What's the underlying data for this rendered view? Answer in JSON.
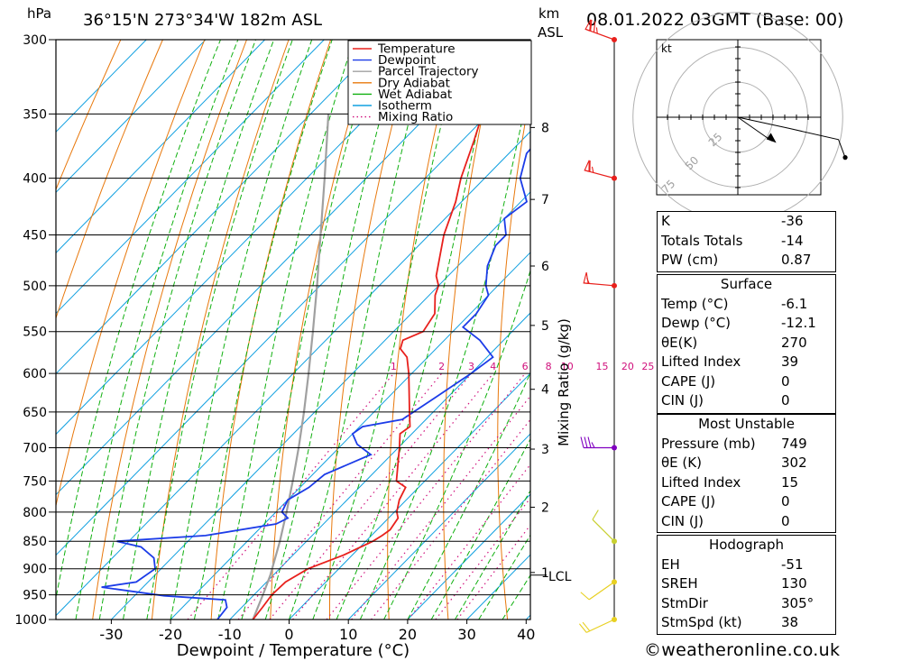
{
  "header": {
    "hpa_unit": "hPa",
    "location": "36°15'N  273°34'W  182m  ASL",
    "km_label": "km",
    "asl_label": "ASL",
    "datetime": "08.01.2022  03GMT  (Base: 00)"
  },
  "chart_data": {
    "type": "line",
    "subtype": "skew-T log-p",
    "xlabel": "Dewpoint / Temperature (°C)",
    "ylabel": "hPa",
    "x_ticks": [
      -30,
      -20,
      -10,
      0,
      10,
      20,
      30,
      40
    ],
    "xlim": [
      -40,
      40
    ],
    "ylim": [
      1000,
      300
    ],
    "pressure_ticks": [
      300,
      350,
      400,
      450,
      500,
      550,
      600,
      650,
      700,
      750,
      800,
      850,
      900,
      950,
      1000
    ],
    "km_ticks": [
      {
        "label": "8",
        "p": 360
      },
      {
        "label": "7",
        "p": 418
      },
      {
        "label": "6",
        "p": 480
      },
      {
        "label": "5",
        "p": 543
      },
      {
        "label": "4",
        "p": 620
      },
      {
        "label": "3",
        "p": 702
      },
      {
        "label": "2",
        "p": 792
      },
      {
        "label": "1",
        "p": 907
      }
    ],
    "lcl_label": "LCL",
    "lcl_pressure": 912,
    "mixing_ratio_label": "Mixing Ratio (g/kg)",
    "mixing_ratios": [
      "1",
      "2",
      "3",
      "4",
      "6",
      "8",
      "10",
      "15",
      "20",
      "25"
    ],
    "legend": {
      "position": "top-right",
      "entries": [
        {
          "name": "Temperature",
          "color": "#e8201c",
          "style": "solid"
        },
        {
          "name": "Dewpoint",
          "color": "#1c3ce8",
          "style": "solid"
        },
        {
          "name": "Parcel Trajectory",
          "color": "#a0a0a0",
          "style": "solid"
        },
        {
          "name": "Dry Adiabat",
          "color": "#e8780c",
          "style": "solid"
        },
        {
          "name": "Wet Adiabat",
          "color": "#10b010",
          "style": "solid"
        },
        {
          "name": "Isotherm",
          "color": "#10a0e0",
          "style": "solid"
        },
        {
          "name": "Mixing Ratio",
          "color": "#d0107c",
          "style": "dotted"
        }
      ]
    },
    "series": [
      {
        "name": "Temperature",
        "color": "#e8201c",
        "points": [
          [
            1000,
            -6.1
          ],
          [
            975,
            -6.5
          ],
          [
            950,
            -7
          ],
          [
            925,
            -6.8
          ],
          [
            900,
            -5.2
          ],
          [
            875,
            -1.5
          ],
          [
            850,
            1.2
          ],
          [
            840,
            1.8
          ],
          [
            830,
            2.2
          ],
          [
            810,
            1.6
          ],
          [
            800,
            0.4
          ],
          [
            780,
            -1.2
          ],
          [
            760,
            -2.2
          ],
          [
            750,
            -4.8
          ],
          [
            700,
            -9.8
          ],
          [
            680,
            -12
          ],
          [
            670,
            -11.5
          ],
          [
            650,
            -14
          ],
          [
            600,
            -20.5
          ],
          [
            580,
            -23.5
          ],
          [
            570,
            -26
          ],
          [
            560,
            -27
          ],
          [
            550,
            -25
          ],
          [
            530,
            -26
          ],
          [
            510,
            -29
          ],
          [
            500,
            -30
          ],
          [
            490,
            -32
          ],
          [
            450,
            -37.5
          ],
          [
            420,
            -41
          ],
          [
            400,
            -44
          ],
          [
            370,
            -48
          ],
          [
            350,
            -51
          ],
          [
            300,
            -58
          ]
        ]
      },
      {
        "name": "Dewpoint",
        "color": "#1c3ce8",
        "points": [
          [
            1000,
            -12.1
          ],
          [
            975,
            -12.5
          ],
          [
            960,
            -14
          ],
          [
            952,
            -25
          ],
          [
            935,
            -37
          ],
          [
            925,
            -32
          ],
          [
            900,
            -31
          ],
          [
            880,
            -33
          ],
          [
            860,
            -37
          ],
          [
            850,
            -42
          ],
          [
            840,
            -28
          ],
          [
            820,
            -18
          ],
          [
            810,
            -17
          ],
          [
            800,
            -19
          ],
          [
            780,
            -20
          ],
          [
            760,
            -18.5
          ],
          [
            740,
            -18
          ],
          [
            710,
            -13.5
          ],
          [
            695,
            -17.5
          ],
          [
            680,
            -20
          ],
          [
            670,
            -19.5
          ],
          [
            660,
            -14
          ],
          [
            630,
            -12
          ],
          [
            600,
            -10
          ],
          [
            580,
            -9
          ],
          [
            560,
            -14
          ],
          [
            545,
            -19
          ],
          [
            530,
            -19
          ],
          [
            510,
            -20
          ],
          [
            500,
            -22
          ],
          [
            480,
            -25
          ],
          [
            460,
            -27
          ],
          [
            450,
            -27
          ],
          [
            435,
            -30
          ],
          [
            420,
            -29
          ],
          [
            400,
            -34
          ],
          [
            380,
            -37
          ],
          [
            360,
            -37.5
          ],
          [
            340,
            -41
          ],
          [
            320,
            -47
          ],
          [
            300,
            -53
          ]
        ]
      },
      {
        "name": "Parcel Trajectory",
        "color": "#a0a0a0",
        "points": [
          [
            1000,
            -6.1
          ],
          [
            950,
            -8.5
          ],
          [
            912,
            -10.5
          ],
          [
            850,
            -14.5
          ],
          [
            800,
            -18.2
          ],
          [
            750,
            -22.3
          ],
          [
            700,
            -26.8
          ],
          [
            650,
            -31.8
          ],
          [
            600,
            -37.4
          ],
          [
            550,
            -43.6
          ],
          [
            500,
            -50.5
          ],
          [
            450,
            -58.3
          ],
          [
            400,
            -67
          ],
          [
            350,
            -77
          ]
        ]
      }
    ],
    "wind_barbs": [
      {
        "p": 300,
        "dir": 290,
        "speed": 75,
        "color": "#e8201c"
      },
      {
        "p": 400,
        "dir": 285,
        "speed": 65,
        "color": "#e8201c"
      },
      {
        "p": 500,
        "dir": 275,
        "speed": 55,
        "color": "#e8201c"
      },
      {
        "p": 700,
        "dir": 270,
        "speed": 35,
        "color": "#8000c0"
      },
      {
        "p": 850,
        "dir": 315,
        "speed": 10,
        "color": "#c8d030"
      },
      {
        "p": 925,
        "dir": 235,
        "speed": 10,
        "color": "#e8d020"
      },
      {
        "p": 1000,
        "dir": 245,
        "speed": 20,
        "color": "#e8d020"
      }
    ],
    "hodograph": {
      "unit": "kt",
      "ring_labels": [
        "25",
        "50",
        "75"
      ],
      "points": [
        [
          0,
          0
        ],
        [
          23,
          -5
        ],
        [
          45,
          -10
        ],
        [
          48,
          -18
        ]
      ],
      "storm_motion_dir": 305,
      "storm_motion_speed_kt": 38
    }
  },
  "indices": {
    "rows": [
      {
        "label": "K",
        "value": "-36"
      },
      {
        "label": "Totals Totals",
        "value": "-14"
      },
      {
        "label": "PW (cm)",
        "value": "0.87"
      }
    ]
  },
  "surface": {
    "title": "Surface",
    "rows": [
      {
        "label": "Temp (°C)",
        "value": "-6.1"
      },
      {
        "label": "Dewp (°C)",
        "value": "-12.1"
      },
      {
        "label": "θE(K)",
        "value": "270"
      },
      {
        "label": "Lifted Index",
        "value": "39"
      },
      {
        "label": "CAPE (J)",
        "value": "0"
      },
      {
        "label": "CIN (J)",
        "value": "0"
      }
    ]
  },
  "most_unstable": {
    "title": "Most Unstable",
    "rows": [
      {
        "label": "Pressure (mb)",
        "value": "749"
      },
      {
        "label": "θE (K)",
        "value": "302"
      },
      {
        "label": "Lifted Index",
        "value": "15"
      },
      {
        "label": "CAPE (J)",
        "value": "0"
      },
      {
        "label": "CIN (J)",
        "value": "0"
      }
    ]
  },
  "hodograph_table": {
    "title": "Hodograph",
    "rows": [
      {
        "label": "EH",
        "value": "-51"
      },
      {
        "label": "SREH",
        "value": "130"
      },
      {
        "label": "StmDir",
        "value": "305°"
      },
      {
        "label": "StmSpd (kt)",
        "value": "38"
      }
    ]
  },
  "footer": {
    "copyright": "©weatheronline.co.uk"
  }
}
